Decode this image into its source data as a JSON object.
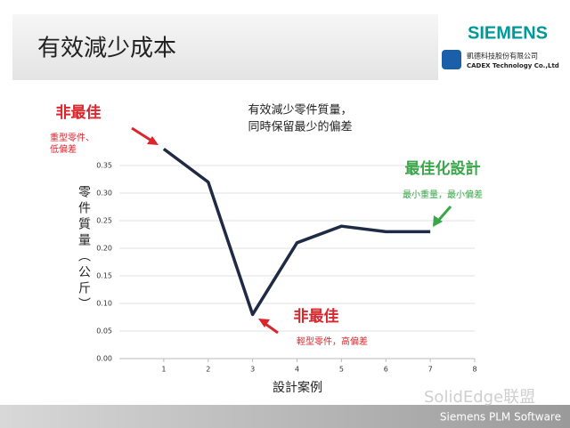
{
  "header": {
    "title": "有效減少成本",
    "brand": "SIEMENS",
    "company": "凱德科技股份有限公司",
    "company_en": "CADEX Technology Co.,Ltd"
  },
  "chart_data": {
    "type": "line",
    "x_label": "設計案例",
    "y_label": "零件質量（公斤）",
    "x": [
      1,
      2,
      3,
      4,
      5,
      6,
      7
    ],
    "series": [
      {
        "name": "零件質量",
        "color": "#1f2a44",
        "values": [
          0.38,
          0.32,
          0.08,
          0.21,
          0.24,
          0.23,
          0.23
        ]
      }
    ],
    "xlim": [
      0,
      8
    ],
    "xticks": [
      1,
      2,
      3,
      4,
      5,
      6,
      7,
      8
    ],
    "ylim": [
      0,
      0.4
    ],
    "yticks": [
      {
        "value": 0,
        "label": "0.00"
      },
      {
        "value": 0.05,
        "label": "0.05"
      },
      {
        "value": 0.1,
        "label": "0.10"
      },
      {
        "value": 0.15,
        "label": "0.15"
      },
      {
        "value": 0.2,
        "label": "0.20"
      },
      {
        "value": 0.25,
        "label": "0.25"
      },
      {
        "value": 0.3,
        "label": "0.30"
      },
      {
        "value": 0.35,
        "label": "0.35"
      }
    ],
    "grid": true,
    "annotations": [
      {
        "title": "非最佳",
        "lines": [
          "重型零件、",
          "低偏差"
        ]
      },
      {
        "lines": [
          "有效減少零件質量，",
          "同時保留最少的偏差"
        ]
      },
      {
        "title": "最佳化設計",
        "lines": [
          "最小重量，最小偏差"
        ]
      },
      {
        "title": "非最佳",
        "lines": [
          "輕型零件，高偏差"
        ]
      }
    ]
  },
  "footer": {
    "watermark": "SolidEdge联盟",
    "text": "Siemens PLM Software"
  }
}
